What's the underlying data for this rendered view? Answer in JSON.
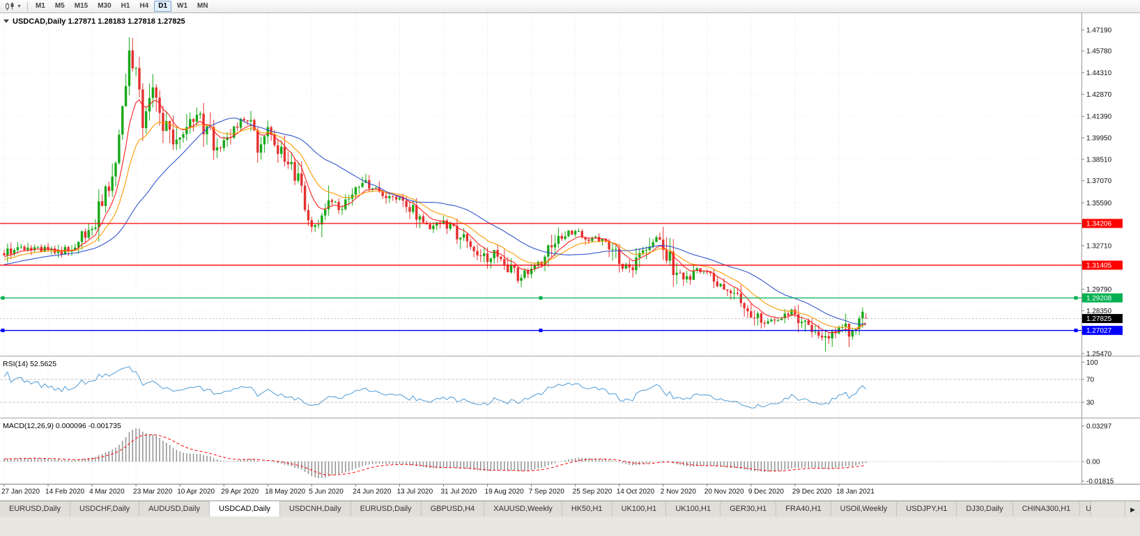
{
  "toolbar": {
    "chart_type_icon": "candlestick-chart-icon",
    "caret_icon": "▼",
    "timeframes": [
      "M1",
      "M5",
      "M15",
      "M30",
      "H1",
      "H4",
      "D1",
      "W1",
      "MN"
    ],
    "active_timeframe": "D1"
  },
  "chart": {
    "title": "USDCAD,Daily 1.27871 1.28183 1.27818 1.27825",
    "symbol": "USDCAD",
    "period": "Daily",
    "open": "1.27871",
    "high": "1.28183",
    "low": "1.27818",
    "close": "1.27825"
  },
  "price_axis": {
    "ticks": [
      "1.47190",
      "1.45780",
      "1.44310",
      "1.42870",
      "1.41390",
      "1.39950",
      "1.38510",
      "1.37070",
      "1.35590",
      "1.34150",
      "1.32710",
      "1.31270",
      "1.29790",
      "1.28350",
      "1.26910",
      "1.25470"
    ],
    "current_price_label": "1.27825",
    "current_price_bg": "#000000"
  },
  "levels": [
    {
      "label": "1.34206",
      "price": 1.34206,
      "color": "#FF0000",
      "handles": false
    },
    {
      "label": "1.31405",
      "price": 1.31405,
      "color": "#FF0000",
      "handles": false
    },
    {
      "label": "1.29208",
      "price": 1.29208,
      "color": "#00B050",
      "handles": true
    },
    {
      "label": "1.27027",
      "price": 1.27027,
      "color": "#0000FF",
      "handles": true
    }
  ],
  "rsi_panel": {
    "label": "RSI(14) 52.5625",
    "axis": [
      "100",
      "70",
      "30"
    ],
    "line_color": "#4F9BD6"
  },
  "macd_panel": {
    "label": "MACD(12,26,9) 0.000096 -0.001735",
    "axis": [
      "0.03297",
      "0.00",
      "-0.01815"
    ],
    "histogram_color": "#909090",
    "signal_color": "#FF0000"
  },
  "date_axis": [
    "27 Jan 2020",
    "14 Feb 2020",
    "4 Mar 2020",
    "23 Mar 2020",
    "10 Apr 2020",
    "29 Apr 2020",
    "18 May 2020",
    "5 Jun 2020",
    "24 Jun 2020",
    "13 Jul 2020",
    "31 Jul 2020",
    "19 Aug 2020",
    "7 Sep 2020",
    "25 Sep 2020",
    "14 Oct 2020",
    "2 Nov 2020",
    "20 Nov 2020",
    "9 Dec 2020",
    "29 Dec 2020",
    "18 Jan 2021"
  ],
  "tabs": {
    "items": [
      "EURUSD,Daily",
      "USDCHF,Daily",
      "AUDUSD,Daily",
      "USDCAD,Daily",
      "USDCNH,Daily",
      "EURUSD,Daily",
      "GBPUSD,H4",
      "XAUUSD,Weekly",
      "HK50,H1",
      "UK100,H1",
      "UK100,H1",
      "GER30,H1",
      "FRA40,H1",
      "USOil,Weekly",
      "USDJPY,H1",
      "DJ30,Daily",
      "CHINA300,H1"
    ],
    "active_index": 3,
    "overflow_label": "U",
    "scroll_icon": "▶"
  },
  "chart_data": {
    "type": "candlestick",
    "title": "USDCAD,Daily",
    "ylim": [
      1.2547,
      1.4719
    ],
    "x_labels": [
      "27 Jan 2020",
      "14 Feb 2020",
      "4 Mar 2020",
      "23 Mar 2020",
      "10 Apr 2020",
      "29 Apr 2020",
      "18 May 2020",
      "5 Jun 2020",
      "24 Jun 2020",
      "13 Jul 2020",
      "31 Jul 2020",
      "19 Aug 2020",
      "7 Sep 2020",
      "25 Sep 2020",
      "14 Oct 2020",
      "2 Nov 2020",
      "20 Nov 2020",
      "9 Dec 2020",
      "29 Dec 2020",
      "18 Jan 2021"
    ],
    "bar_count": 256,
    "bars_per_x_label": 13,
    "last_bar": {
      "open": 1.27871,
      "high": 1.28183,
      "low": 1.27818,
      "close": 1.27825
    },
    "peak": {
      "index": 37,
      "high": 1.4669
    },
    "trough": {
      "index": 243,
      "low": 1.256
    },
    "close_anchors": [
      [
        0,
        1.32
      ],
      [
        4,
        1.3268
      ],
      [
        8,
        1.3242
      ],
      [
        13,
        1.3255
      ],
      [
        17,
        1.3212
      ],
      [
        21,
        1.3295
      ],
      [
        26,
        1.339
      ],
      [
        30,
        1.362
      ],
      [
        33,
        1.388
      ],
      [
        35,
        1.418
      ],
      [
        37,
        1.451
      ],
      [
        39,
        1.442
      ],
      [
        41,
        1.412
      ],
      [
        44,
        1.431
      ],
      [
        47,
        1.408
      ],
      [
        50,
        1.399
      ],
      [
        52,
        1.406
      ],
      [
        56,
        1.414
      ],
      [
        60,
        1.406
      ],
      [
        63,
        1.394
      ],
      [
        66,
        1.401
      ],
      [
        69,
        1.409
      ],
      [
        72,
        1.412
      ],
      [
        75,
        1.396
      ],
      [
        78,
        1.403
      ],
      [
        81,
        1.393
      ],
      [
        84,
        1.382
      ],
      [
        87,
        1.372
      ],
      [
        89,
        1.354
      ],
      [
        91,
        1.343
      ],
      [
        93,
        1.34
      ],
      [
        96,
        1.356
      ],
      [
        99,
        1.353
      ],
      [
        102,
        1.359
      ],
      [
        104,
        1.363
      ],
      [
        107,
        1.368
      ],
      [
        110,
        1.364
      ],
      [
        113,
        1.36
      ],
      [
        117,
        1.358
      ],
      [
        120,
        1.353
      ],
      [
        123,
        1.345
      ],
      [
        126,
        1.34
      ],
      [
        130,
        1.342
      ],
      [
        133,
        1.339
      ],
      [
        136,
        1.33
      ],
      [
        139,
        1.324
      ],
      [
        143,
        1.318
      ],
      [
        146,
        1.323
      ],
      [
        149,
        1.313
      ],
      [
        152,
        1.306
      ],
      [
        156,
        1.311
      ],
      [
        159,
        1.315
      ],
      [
        162,
        1.326
      ],
      [
        165,
        1.333
      ],
      [
        169,
        1.338
      ],
      [
        172,
        1.333
      ],
      [
        175,
        1.331
      ],
      [
        178,
        1.33
      ],
      [
        180,
        1.323
      ],
      [
        182,
        1.315
      ],
      [
        185,
        1.312
      ],
      [
        188,
        1.321
      ],
      [
        191,
        1.329
      ],
      [
        194,
        1.332
      ],
      [
        196,
        1.323
      ],
      [
        199,
        1.308
      ],
      [
        202,
        1.304
      ],
      [
        205,
        1.309
      ],
      [
        208,
        1.309
      ],
      [
        211,
        1.303
      ],
      [
        214,
        1.299
      ],
      [
        217,
        1.294
      ],
      [
        221,
        1.282
      ],
      [
        224,
        1.276
      ],
      [
        227,
        1.277
      ],
      [
        230,
        1.28
      ],
      [
        234,
        1.283
      ],
      [
        237,
        1.274
      ],
      [
        240,
        1.269
      ],
      [
        243,
        1.264
      ],
      [
        246,
        1.271
      ],
      [
        248,
        1.273
      ],
      [
        250,
        1.266
      ],
      [
        252,
        1.269
      ],
      [
        254,
        1.277
      ],
      [
        255,
        1.27825
      ]
    ],
    "up_color": "#17A817",
    "down_color": "#E53030",
    "moving_averages": [
      {
        "type": "ema",
        "period": 8,
        "color": "#FF2020"
      },
      {
        "type": "ema",
        "period": 17,
        "color": "#FF9A00"
      },
      {
        "type": "sma",
        "period": 34,
        "color": "#3355CC"
      }
    ],
    "rsi": {
      "period": 14,
      "value": 52.5625,
      "levels": [
        70,
        30
      ],
      "color": "#4F9BD6"
    },
    "macd": {
      "fast": 12,
      "slow": 26,
      "signal_period": 9,
      "value": 9.6e-05,
      "signal_value": -0.001735,
      "axis_top": 0.03297,
      "axis_bottom": -0.01815
    }
  }
}
